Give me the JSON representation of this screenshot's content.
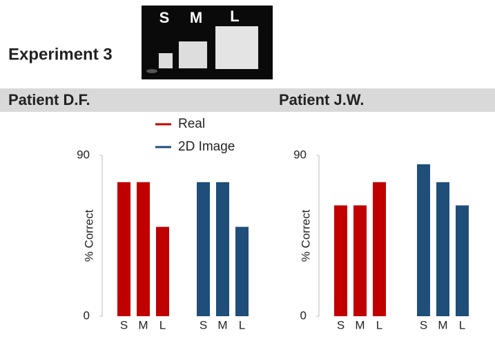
{
  "header": {
    "title": "Experiment 3",
    "photo_labels": [
      "S",
      "M",
      "L"
    ]
  },
  "chart_data": [
    {
      "type": "bar",
      "title": "Patient D.F.",
      "ylabel": "% Correct",
      "categories": [
        "S",
        "M",
        "L"
      ],
      "ylim": [
        0,
        90
      ],
      "yticks": [
        0,
        90
      ],
      "series": [
        {
          "name": "Real",
          "color": "#c00000",
          "values": [
            75,
            75,
            50
          ]
        },
        {
          "name": "2D Image",
          "color": "#1f4e79",
          "values": [
            75,
            75,
            50
          ]
        }
      ]
    },
    {
      "type": "bar",
      "title": "Patient J.W.",
      "ylabel": "% Correct",
      "categories": [
        "S",
        "M",
        "L"
      ],
      "ylim": [
        0,
        90
      ],
      "yticks": [
        0,
        90
      ],
      "series": [
        {
          "color": "#c00000",
          "values": [
            62,
            62,
            75
          ]
        },
        {
          "color": "#1f4e79",
          "values": [
            85,
            75,
            62
          ]
        }
      ]
    }
  ]
}
